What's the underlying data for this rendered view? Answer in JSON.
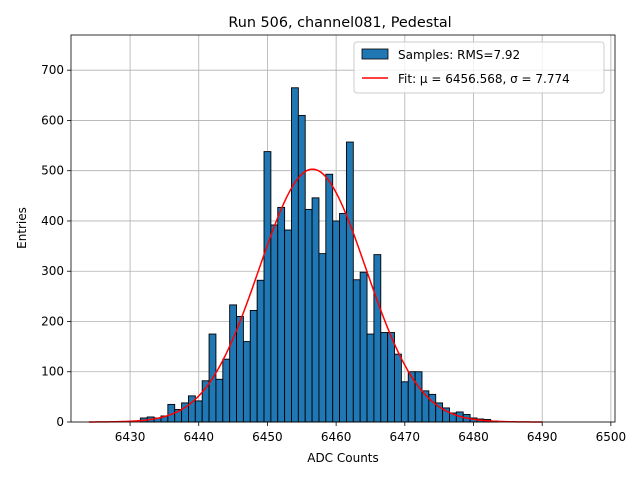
{
  "chart_data": {
    "type": "bar",
    "title": "Run 506, channel081, Pedestal",
    "xlabel": "ADC Counts",
    "ylabel": "Entries",
    "xlim": [
      6421.4,
      6500.6
    ],
    "ylim": [
      0,
      770
    ],
    "xticks": [
      6430,
      6440,
      6450,
      6460,
      6470,
      6480,
      6490,
      6500
    ],
    "yticks": [
      0,
      100,
      200,
      300,
      400,
      500,
      600,
      700
    ],
    "grid": true,
    "legend_position": "top-right",
    "bin_width": 1,
    "bins": [
      {
        "x": 6432,
        "y": 8
      },
      {
        "x": 6433,
        "y": 10
      },
      {
        "x": 6434,
        "y": 8
      },
      {
        "x": 6435,
        "y": 12
      },
      {
        "x": 6436,
        "y": 35
      },
      {
        "x": 6437,
        "y": 25
      },
      {
        "x": 6438,
        "y": 38
      },
      {
        "x": 6439,
        "y": 52
      },
      {
        "x": 6440,
        "y": 42
      },
      {
        "x": 6441,
        "y": 82
      },
      {
        "x": 6442,
        "y": 175
      },
      {
        "x": 6443,
        "y": 85
      },
      {
        "x": 6444,
        "y": 125
      },
      {
        "x": 6445,
        "y": 233
      },
      {
        "x": 6446,
        "y": 210
      },
      {
        "x": 6447,
        "y": 160
      },
      {
        "x": 6448,
        "y": 222
      },
      {
        "x": 6449,
        "y": 282
      },
      {
        "x": 6450,
        "y": 538
      },
      {
        "x": 6451,
        "y": 392
      },
      {
        "x": 6452,
        "y": 427
      },
      {
        "x": 6453,
        "y": 382
      },
      {
        "x": 6454,
        "y": 665
      },
      {
        "x": 6455,
        "y": 610
      },
      {
        "x": 6456,
        "y": 423
      },
      {
        "x": 6457,
        "y": 446
      },
      {
        "x": 6458,
        "y": 335
      },
      {
        "x": 6459,
        "y": 493
      },
      {
        "x": 6460,
        "y": 400
      },
      {
        "x": 6461,
        "y": 415
      },
      {
        "x": 6462,
        "y": 557
      },
      {
        "x": 6463,
        "y": 283
      },
      {
        "x": 6464,
        "y": 298
      },
      {
        "x": 6465,
        "y": 175
      },
      {
        "x": 6466,
        "y": 333
      },
      {
        "x": 6467,
        "y": 178
      },
      {
        "x": 6468,
        "y": 178
      },
      {
        "x": 6469,
        "y": 135
      },
      {
        "x": 6470,
        "y": 80
      },
      {
        "x": 6471,
        "y": 100
      },
      {
        "x": 6472,
        "y": 100
      },
      {
        "x": 6473,
        "y": 62
      },
      {
        "x": 6474,
        "y": 55
      },
      {
        "x": 6475,
        "y": 38
      },
      {
        "x": 6476,
        "y": 28
      },
      {
        "x": 6477,
        "y": 18
      },
      {
        "x": 6478,
        "y": 20
      },
      {
        "x": 6479,
        "y": 15
      },
      {
        "x": 6480,
        "y": 8
      },
      {
        "x": 6481,
        "y": 6
      },
      {
        "x": 6482,
        "y": 5
      },
      {
        "x": 6483,
        "y": 2
      }
    ],
    "series": [
      {
        "name": "Samples: RMS=7.92",
        "kind": "histogram",
        "color": "#1f77b4",
        "edge_color": "#000000"
      },
      {
        "name": "Fit: μ = 6456.568, σ = 7.774",
        "kind": "gaussian-fit",
        "color": "#ff0000",
        "mu": 6456.568,
        "sigma": 7.774,
        "amplitude": 503,
        "x_range": [
          6424,
          6490
        ]
      }
    ]
  }
}
